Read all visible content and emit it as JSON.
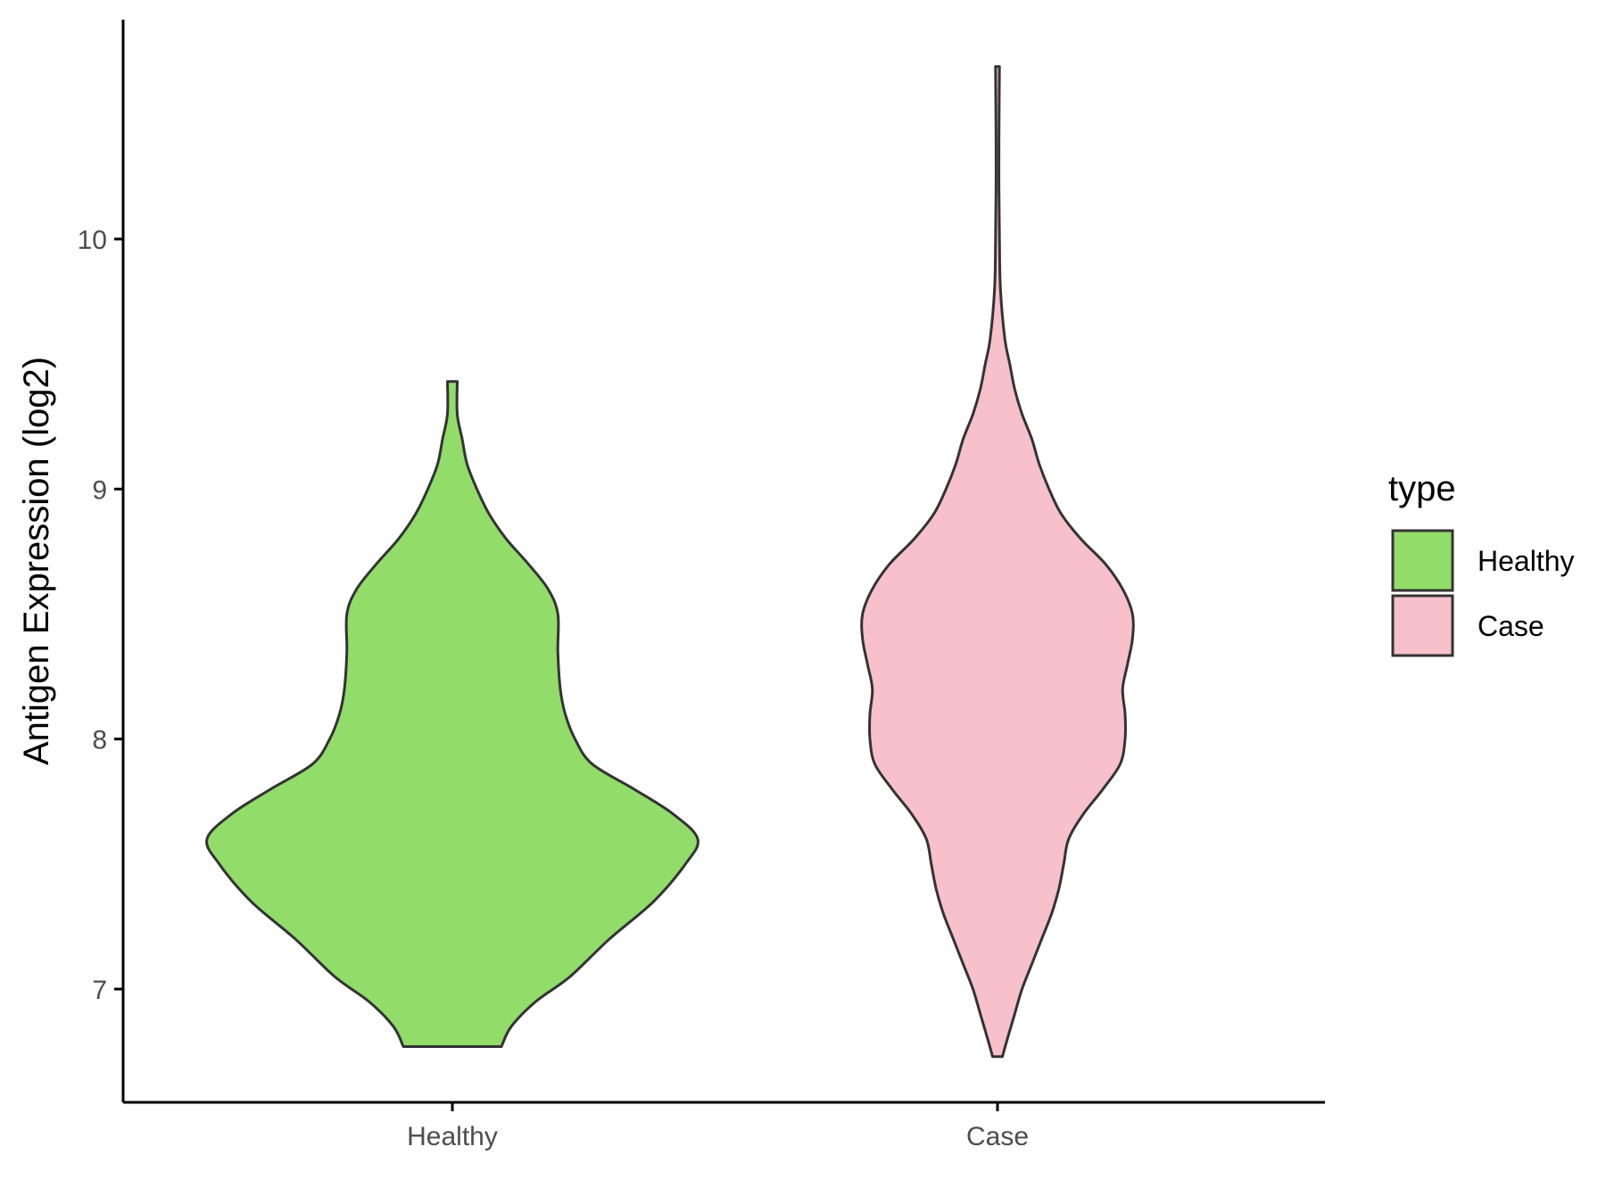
{
  "chart_data": {
    "type": "violin",
    "ylabel": "Antigen Expression (log2)",
    "xlabel": "",
    "categories": [
      "Healthy",
      "Case"
    ],
    "ylim": [
      6.55,
      10.9
    ],
    "yticks": [
      7,
      8,
      9,
      10
    ],
    "legend": {
      "title": "type",
      "position": "right",
      "items": [
        {
          "label": "Healthy",
          "color": "#92DC6A"
        },
        {
          "label": "Case",
          "color": "#F7C0CB"
        }
      ]
    },
    "series": [
      {
        "category": "Healthy",
        "color": "#92DC6A",
        "min": 6.77,
        "max": 9.43,
        "density_profile": [
          [
            6.77,
            0.2
          ],
          [
            6.85,
            0.24
          ],
          [
            6.95,
            0.34
          ],
          [
            7.05,
            0.48
          ],
          [
            7.2,
            0.64
          ],
          [
            7.35,
            0.82
          ],
          [
            7.5,
            0.95
          ],
          [
            7.6,
            1.0
          ],
          [
            7.7,
            0.9
          ],
          [
            7.8,
            0.74
          ],
          [
            7.9,
            0.57
          ],
          [
            8.0,
            0.5
          ],
          [
            8.1,
            0.46
          ],
          [
            8.2,
            0.44
          ],
          [
            8.35,
            0.43
          ],
          [
            8.5,
            0.43
          ],
          [
            8.6,
            0.39
          ],
          [
            8.7,
            0.31
          ],
          [
            8.8,
            0.22
          ],
          [
            8.9,
            0.15
          ],
          [
            9.0,
            0.1
          ],
          [
            9.1,
            0.06
          ],
          [
            9.2,
            0.04
          ],
          [
            9.3,
            0.02
          ],
          [
            9.43,
            0.02
          ]
        ]
      },
      {
        "category": "Case",
        "color": "#F7C0CB",
        "min": 6.73,
        "max": 10.69,
        "density_profile": [
          [
            6.73,
            0.02
          ],
          [
            6.8,
            0.04
          ],
          [
            6.9,
            0.07
          ],
          [
            7.0,
            0.1
          ],
          [
            7.1,
            0.14
          ],
          [
            7.2,
            0.18
          ],
          [
            7.3,
            0.22
          ],
          [
            7.4,
            0.25
          ],
          [
            7.5,
            0.27
          ],
          [
            7.6,
            0.29
          ],
          [
            7.7,
            0.35
          ],
          [
            7.8,
            0.43
          ],
          [
            7.9,
            0.5
          ],
          [
            8.0,
            0.52
          ],
          [
            8.1,
            0.52
          ],
          [
            8.2,
            0.51
          ],
          [
            8.3,
            0.53
          ],
          [
            8.4,
            0.55
          ],
          [
            8.5,
            0.55
          ],
          [
            8.6,
            0.51
          ],
          [
            8.7,
            0.44
          ],
          [
            8.8,
            0.34
          ],
          [
            8.9,
            0.26
          ],
          [
            9.0,
            0.21
          ],
          [
            9.1,
            0.17
          ],
          [
            9.2,
            0.14
          ],
          [
            9.3,
            0.1
          ],
          [
            9.4,
            0.07
          ],
          [
            9.5,
            0.05
          ],
          [
            9.6,
            0.03
          ],
          [
            9.8,
            0.012
          ],
          [
            10.0,
            0.008
          ],
          [
            10.2,
            0.006
          ],
          [
            10.4,
            0.006
          ],
          [
            10.69,
            0.008
          ]
        ]
      }
    ]
  }
}
